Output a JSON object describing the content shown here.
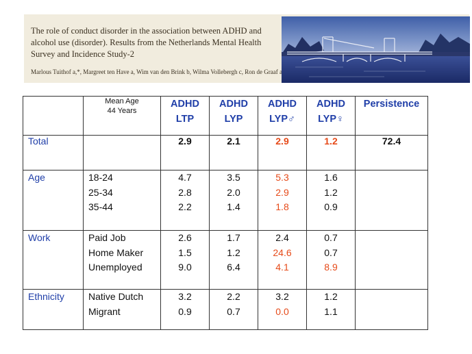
{
  "banner": {
    "title": "The role of conduct disorder in the association between ADHD and alcohol use (disorder). Results from the Netherlands Mental Health Survey and Incidence Study-2",
    "authors": "Marlous Tuithof a,*, Margreet ten Have a, Wim van den Brink b, Wilma Vollebergh c, Ron de Graaf a"
  },
  "table": {
    "header": {
      "mean_age_line1": "Mean Age",
      "mean_age_line2": "44 Years",
      "col1_line1": "ADHD",
      "col1_line2": "LTP",
      "col2_line1": "ADHD",
      "col2_line2": "LYP",
      "col3_line1": "ADHD",
      "col3_line2": "LYP♂",
      "col4_line1": "ADHD",
      "col4_line2": "LYP♀",
      "col5": "Persistence"
    },
    "total": {
      "label": "Total",
      "ltp": "2.9",
      "lyp": "2.1",
      "lyp_m": "2.9",
      "lyp_f": "1.2",
      "persistence": "72.4"
    },
    "age": {
      "label": "Age",
      "rows": [
        {
          "name": "18-24",
          "ltp": "4.7",
          "lyp": "3.5",
          "lyp_m": "5.3",
          "lyp_f": "1.6"
        },
        {
          "name": "25-34",
          "ltp": "2.8",
          "lyp": "2.0",
          "lyp_m": "2.9",
          "lyp_f": "1.2"
        },
        {
          "name": "35-44",
          "ltp": "2.2",
          "lyp": "1.4",
          "lyp_m": "1.8",
          "lyp_f": "0.9"
        }
      ]
    },
    "work": {
      "label": "Work",
      "rows": [
        {
          "name": "Paid Job",
          "ltp": "2.6",
          "lyp": "1.7",
          "lyp_m": "2.4",
          "lyp_f": "0.7"
        },
        {
          "name": "Home Maker",
          "ltp": "1.5",
          "lyp": "1.2",
          "lyp_m": "24.6",
          "lyp_f": "0.7"
        },
        {
          "name": "Unemployed",
          "ltp": "9.0",
          "lyp": "6.4",
          "lyp_m": "4.1",
          "lyp_f": "8.9"
        }
      ]
    },
    "ethnicity": {
      "label": "Ethnicity",
      "rows": [
        {
          "name": "Native Dutch",
          "ltp": "3.2",
          "lyp": "2.2",
          "lyp_m": "3.2",
          "lyp_f": "1.2"
        },
        {
          "name": "Migrant",
          "ltp": "0.9",
          "lyp": "0.7",
          "lyp_m": "0.0",
          "lyp_f": "1.1"
        }
      ]
    },
    "colors": {
      "label_blue": "#1f3ea8",
      "highlight_red": "#e64a19"
    }
  }
}
